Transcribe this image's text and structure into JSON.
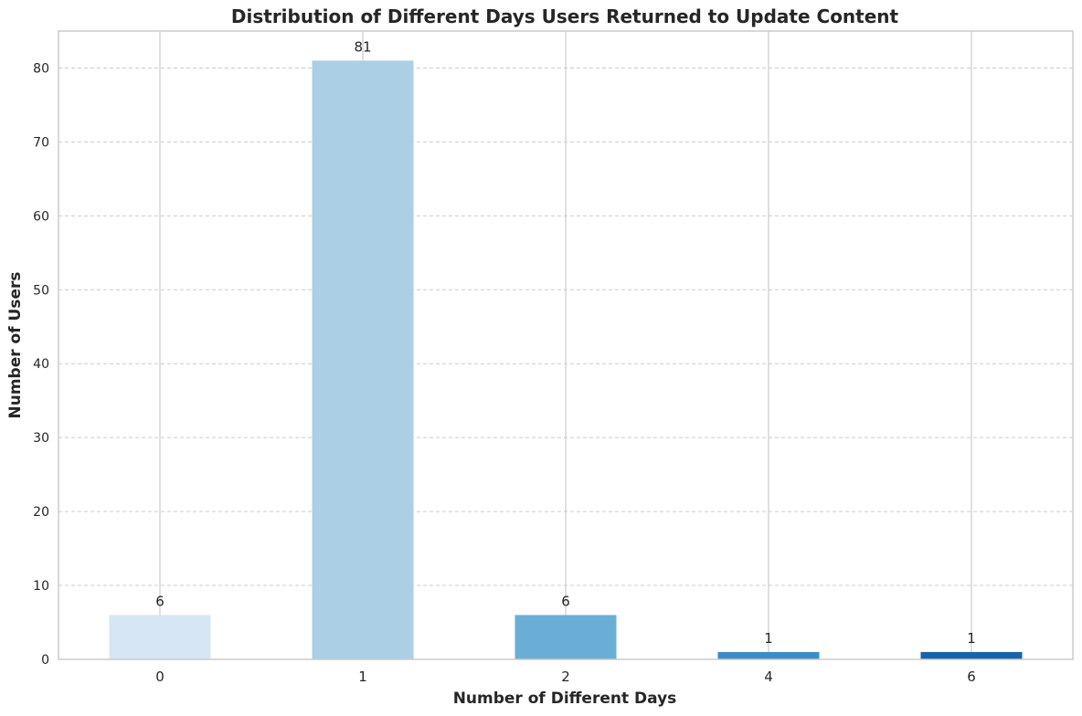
{
  "chart_data": {
    "type": "bar",
    "title": "Distribution of Different Days Users Returned to Update Content",
    "xlabel": "Number of Different Days",
    "ylabel": "Number of Users",
    "categories": [
      "0",
      "1",
      "2",
      "4",
      "6"
    ],
    "values": [
      6,
      81,
      6,
      1,
      1
    ],
    "data_labels": [
      "6",
      "81",
      "6",
      "1",
      "1"
    ],
    "colors": [
      "#d6e6f4",
      "#abcfe5",
      "#6aaed6",
      "#3d8dc4",
      "#1864aa"
    ],
    "ylim": [
      0,
      85
    ],
    "yticks": [
      0,
      10,
      20,
      30,
      40,
      50,
      60,
      70,
      80
    ],
    "ytick_labels": [
      "0",
      "10",
      "20",
      "30",
      "40",
      "50",
      "60",
      "70",
      "80"
    ],
    "grid": true,
    "legend": "none"
  }
}
